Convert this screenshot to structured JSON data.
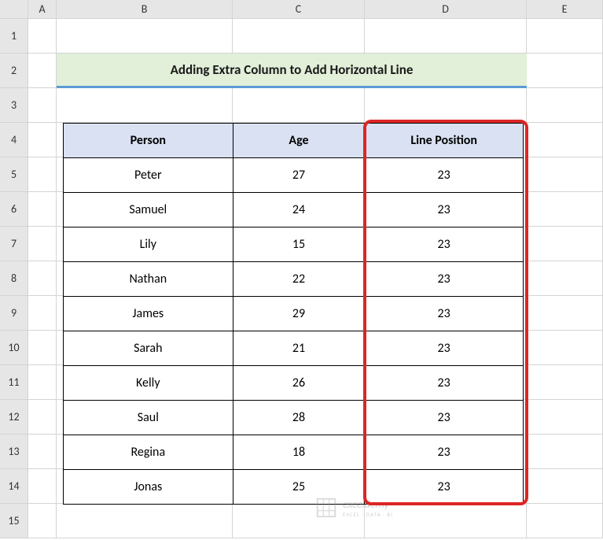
{
  "columns": [
    "A",
    "B",
    "C",
    "D",
    "E"
  ],
  "rows": [
    "1",
    "2",
    "3",
    "4",
    "5",
    "6",
    "7",
    "8",
    "9",
    "10",
    "11",
    "12",
    "13",
    "14",
    "15"
  ],
  "title": "Adding Extra Column to Add Horizontal Line",
  "table": {
    "headers": [
      "Person",
      "Age",
      "Line Position"
    ],
    "data": [
      [
        "Peter",
        "27",
        "23"
      ],
      [
        "Samuel",
        "24",
        "23"
      ],
      [
        "Lily",
        "15",
        "23"
      ],
      [
        "Nathan",
        "22",
        "23"
      ],
      [
        "James",
        "29",
        "23"
      ],
      [
        "Sarah",
        "21",
        "23"
      ],
      [
        "Kelly",
        "26",
        "23"
      ],
      [
        "Saul",
        "28",
        "23"
      ],
      [
        "Regina",
        "18",
        "23"
      ],
      [
        "Jonas",
        "25",
        "23"
      ]
    ]
  },
  "watermark": {
    "text": "exceldemy",
    "subtext": "EXCEL · DATA · BI"
  },
  "colors": {
    "title_bg": "#e2efd9",
    "title_border": "#5b9bd5",
    "header_bg": "#d9e1f2",
    "highlight_border": "#dc2626",
    "grid_header_bg": "#e6e6e6",
    "grid_line": "#d4d4d4"
  }
}
